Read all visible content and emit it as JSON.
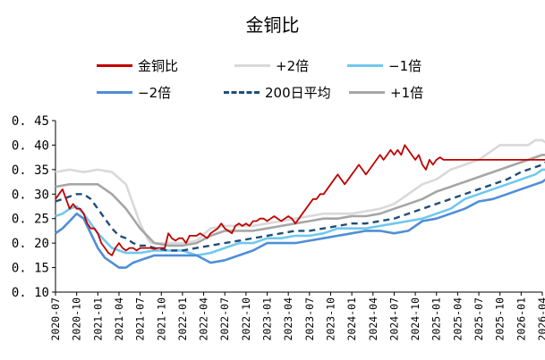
{
  "chart_data": {
    "type": "line",
    "title": "金铜比",
    "xlabel": "",
    "ylabel": "",
    "ylim": [
      0.1,
      0.45
    ],
    "yticks": [
      "0. 10",
      "0. 15",
      "0. 20",
      "0. 25",
      "0. 30",
      "0. 35",
      "0. 40",
      "0. 45"
    ],
    "xticks": [
      "2020-07",
      "2020-10",
      "2021-01",
      "2021-04",
      "2021-07",
      "2021-10",
      "2022-01",
      "2022-04",
      "2022-07",
      "2022-10",
      "2023-01",
      "2023-04",
      "2023-07",
      "2023-10",
      "2024-01",
      "2024-04",
      "2024-07",
      "2024-10",
      "2025-01",
      "2025-04",
      "2025-07",
      "2025-10",
      "2026-01",
      "2026-04"
    ],
    "grid": false,
    "legend_position": "top",
    "series": [
      {
        "name": "金铜比",
        "color": "#c00000",
        "style": "solid-noisy",
        "x": [
          0,
          0.5,
          1,
          1.5,
          2,
          2.5,
          3,
          3.5,
          4,
          4.5,
          5,
          5.5,
          6,
          6.5,
          7,
          7.5,
          8,
          8.5,
          9,
          9.5,
          10,
          10.5,
          11,
          11.5,
          12,
          12.5,
          13,
          13.5,
          14,
          14.5,
          15,
          15.5,
          16,
          16.5,
          17,
          17.5,
          18,
          18.5,
          19,
          19.5,
          20,
          20.5,
          21,
          21.5,
          22,
          22.5,
          23,
          23.5,
          24,
          24.5,
          25,
          25.5,
          26,
          26.5,
          27,
          27.5,
          28,
          28.5,
          29,
          29.5,
          30,
          30.5,
          31,
          31.5,
          32,
          32.5,
          33,
          33.5,
          34,
          34.5,
          35,
          35.5,
          36,
          36.5,
          37,
          37.5,
          38,
          38.5,
          39,
          39.5,
          40,
          40.5,
          41,
          41.5,
          42,
          42.5,
          43,
          43.5,
          44,
          44.5,
          45,
          45.5,
          46,
          46.5,
          47,
          47.5,
          48,
          48.5,
          49,
          49.5,
          50,
          50.5,
          51,
          51.5,
          52,
          52.5,
          53,
          53.5,
          54,
          54.5,
          55,
          55.5,
          56,
          56.5,
          57,
          57.5,
          58,
          58.5,
          59,
          59.5,
          60,
          60.5,
          61,
          61.5,
          62,
          62.5,
          63,
          63.5,
          64,
          64.5,
          65,
          65.5,
          66,
          66.5,
          67,
          67.5,
          68,
          68.5,
          69,
          69.5
        ],
        "values": [
          0.29,
          0.3,
          0.31,
          0.29,
          0.27,
          0.28,
          0.27,
          0.27,
          0.26,
          0.24,
          0.23,
          0.23,
          0.22,
          0.2,
          0.19,
          0.18,
          0.175,
          0.19,
          0.2,
          0.19,
          0.185,
          0.19,
          0.19,
          0.185,
          0.19,
          0.19,
          0.19,
          0.19,
          0.188,
          0.19,
          0.19,
          0.19,
          0.22,
          0.21,
          0.205,
          0.21,
          0.21,
          0.2,
          0.215,
          0.215,
          0.215,
          0.22,
          0.215,
          0.21,
          0.22,
          0.225,
          0.23,
          0.24,
          0.23,
          0.225,
          0.22,
          0.235,
          0.24,
          0.235,
          0.24,
          0.235,
          0.245,
          0.245,
          0.25,
          0.25,
          0.245,
          0.25,
          0.255,
          0.25,
          0.245,
          0.25,
          0.255,
          0.25,
          0.24,
          0.25,
          0.26,
          0.27,
          0.28,
          0.29,
          0.29,
          0.3,
          0.3,
          0.31,
          0.32,
          0.33,
          0.34,
          0.33,
          0.32,
          0.33,
          0.34,
          0.35,
          0.36,
          0.35,
          0.34,
          0.35,
          0.36,
          0.37,
          0.38,
          0.37,
          0.38,
          0.39,
          0.38,
          0.39,
          0.38,
          0.4,
          0.39,
          0.38,
          0.37,
          0.38,
          0.36,
          0.35,
          0.37,
          0.36,
          0.37,
          0.375,
          0.37,
          0.37,
          0.37,
          0.37,
          0.37,
          0.37,
          0.37,
          0.37,
          0.37,
          0.37,
          0.37,
          0.37,
          0.37,
          0.37,
          0.37,
          0.37,
          0.37,
          0.37,
          0.37,
          0.37,
          0.37,
          0.37,
          0.37,
          0.37,
          0.37,
          0.37,
          0.37,
          0.37,
          0.37,
          0.37
        ]
      },
      {
        "name": "+2倍",
        "color": "#d9d9d9",
        "style": "solid",
        "x": [
          0,
          2,
          4,
          6,
          8,
          10,
          11,
          12,
          13,
          13.5,
          14,
          15,
          16,
          18,
          20,
          22,
          24,
          26,
          28,
          30,
          32,
          34,
          36,
          38,
          40,
          42,
          44,
          46,
          48,
          50,
          52,
          54,
          56,
          58,
          60,
          61,
          62,
          63,
          64,
          65,
          66,
          67,
          68,
          69,
          69.5
        ],
        "values": [
          0.345,
          0.35,
          0.345,
          0.35,
          0.345,
          0.32,
          0.28,
          0.24,
          0.21,
          0.2,
          0.2,
          0.2,
          0.2,
          0.2,
          0.205,
          0.23,
          0.235,
          0.235,
          0.235,
          0.24,
          0.245,
          0.25,
          0.255,
          0.26,
          0.26,
          0.26,
          0.265,
          0.27,
          0.28,
          0.3,
          0.32,
          0.33,
          0.35,
          0.36,
          0.37,
          0.38,
          0.39,
          0.4,
          0.4,
          0.4,
          0.4,
          0.4,
          0.41,
          0.41,
          0.405
        ]
      },
      {
        "name": "−1倍",
        "color": "#6fc8ee",
        "style": "solid",
        "x": [
          0,
          1,
          2,
          3,
          4,
          5,
          6,
          8,
          10,
          12,
          14,
          16,
          18,
          20,
          22,
          24,
          26,
          28,
          30,
          32,
          34,
          36,
          38,
          40,
          42,
          44,
          46,
          48,
          50,
          52,
          54,
          56,
          58,
          60,
          62,
          64,
          66,
          68,
          69,
          69.5
        ],
        "values": [
          0.255,
          0.26,
          0.27,
          0.275,
          0.26,
          0.24,
          0.22,
          0.19,
          0.18,
          0.18,
          0.185,
          0.185,
          0.185,
          0.175,
          0.18,
          0.19,
          0.2,
          0.2,
          0.21,
          0.21,
          0.215,
          0.215,
          0.22,
          0.23,
          0.23,
          0.23,
          0.235,
          0.24,
          0.245,
          0.25,
          0.26,
          0.27,
          0.29,
          0.3,
          0.31,
          0.32,
          0.33,
          0.34,
          0.35,
          0.35
        ]
      },
      {
        "name": "−2倍",
        "color": "#4f8ed6",
        "style": "solid",
        "x": [
          0,
          1,
          2,
          3,
          4,
          5,
          6,
          7,
          8,
          9,
          10,
          11,
          12,
          13,
          14,
          16,
          18,
          20,
          22,
          24,
          26,
          28,
          30,
          32,
          34,
          36,
          38,
          40,
          42,
          44,
          46,
          48,
          50,
          52,
          54,
          56,
          58,
          60,
          62,
          64,
          66,
          68,
          69,
          69.5
        ],
        "values": [
          0.22,
          0.23,
          0.245,
          0.26,
          0.25,
          0.22,
          0.19,
          0.17,
          0.16,
          0.15,
          0.15,
          0.16,
          0.165,
          0.17,
          0.175,
          0.175,
          0.175,
          0.175,
          0.16,
          0.165,
          0.175,
          0.185,
          0.2,
          0.2,
          0.2,
          0.205,
          0.21,
          0.215,
          0.22,
          0.225,
          0.225,
          0.22,
          0.225,
          0.245,
          0.25,
          0.26,
          0.27,
          0.285,
          0.29,
          0.3,
          0.31,
          0.32,
          0.325,
          0.33
        ]
      },
      {
        "name": "200日平均",
        "color": "#1f4e79",
        "style": "dashed",
        "x": [
          0,
          1,
          2,
          3,
          4,
          5,
          6,
          7,
          8,
          9,
          10,
          11,
          12,
          13,
          14,
          16,
          18,
          20,
          22,
          24,
          26,
          28,
          30,
          32,
          34,
          36,
          38,
          40,
          42,
          44,
          46,
          48,
          50,
          52,
          54,
          56,
          58,
          60,
          62,
          64,
          66,
          68,
          69,
          69.5
        ],
        "values": [
          0.285,
          0.29,
          0.295,
          0.3,
          0.3,
          0.29,
          0.27,
          0.25,
          0.23,
          0.215,
          0.21,
          0.2,
          0.195,
          0.195,
          0.19,
          0.185,
          0.185,
          0.19,
          0.195,
          0.2,
          0.205,
          0.21,
          0.215,
          0.22,
          0.225,
          0.225,
          0.23,
          0.235,
          0.24,
          0.24,
          0.245,
          0.25,
          0.26,
          0.27,
          0.28,
          0.29,
          0.3,
          0.31,
          0.32,
          0.33,
          0.345,
          0.355,
          0.36,
          0.365
        ]
      },
      {
        "name": "+1倍",
        "color": "#a6a6a6",
        "style": "solid",
        "x": [
          0,
          2,
          4,
          6,
          8,
          10,
          12,
          14,
          16,
          18,
          20,
          22,
          24,
          26,
          28,
          30,
          32,
          34,
          36,
          38,
          40,
          42,
          44,
          46,
          48,
          50,
          52,
          54,
          56,
          58,
          60,
          62,
          64,
          66,
          68,
          69,
          69.5
        ],
        "values": [
          0.315,
          0.32,
          0.32,
          0.32,
          0.3,
          0.27,
          0.23,
          0.2,
          0.195,
          0.195,
          0.2,
          0.215,
          0.225,
          0.225,
          0.225,
          0.23,
          0.235,
          0.24,
          0.245,
          0.25,
          0.25,
          0.255,
          0.255,
          0.26,
          0.27,
          0.28,
          0.29,
          0.305,
          0.315,
          0.325,
          0.335,
          0.345,
          0.355,
          0.365,
          0.375,
          0.38,
          0.38
        ]
      }
    ]
  }
}
